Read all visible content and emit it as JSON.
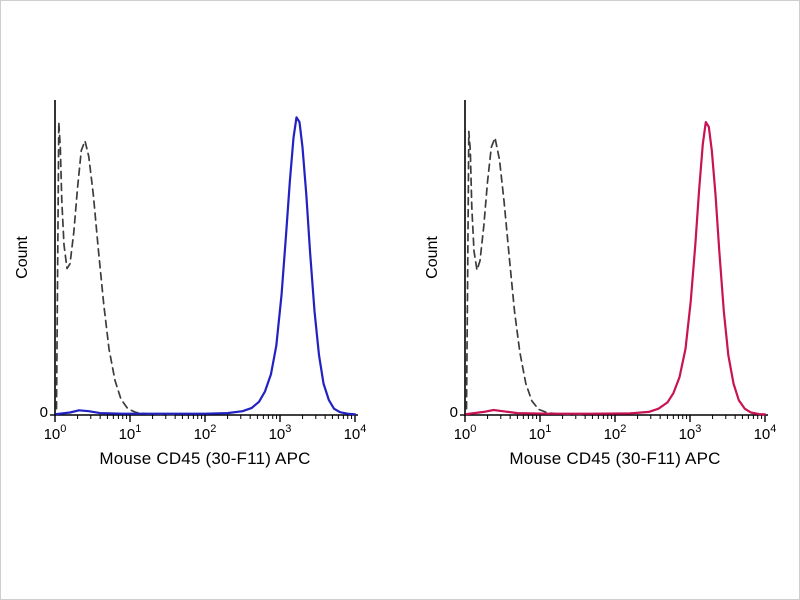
{
  "page": {
    "background": "#ffffff",
    "frame_color": "#cfcfcf"
  },
  "chart_data": [
    {
      "type": "line",
      "chart_kind": "flow-cytometry-histogram",
      "title": "",
      "xlabel": "Mouse CD45 (30-F11) APC",
      "ylabel": "Count",
      "x_scale": "log10",
      "xlim_exponents": [
        0,
        4
      ],
      "x_tick_base": "10",
      "x_tick_exponents": [
        "0",
        "1",
        "2",
        "3",
        "4"
      ],
      "y_tick_labels": [
        "0"
      ],
      "ylim": [
        0,
        1
      ],
      "grid": false,
      "legend": "none",
      "axis_color": "#000000",
      "series": [
        {
          "name": "control (dashed)",
          "line_style": "dashed",
          "color": "#3c3c3c",
          "points": [
            [
              0.02,
              0.02
            ],
            [
              0.035,
              0.45
            ],
            [
              0.05,
              0.93
            ],
            [
              0.07,
              0.85
            ],
            [
              0.09,
              0.68
            ],
            [
              0.12,
              0.54
            ],
            [
              0.16,
              0.465
            ],
            [
              0.2,
              0.48
            ],
            [
              0.25,
              0.58
            ],
            [
              0.3,
              0.72
            ],
            [
              0.35,
              0.84
            ],
            [
              0.4,
              0.87
            ],
            [
              0.45,
              0.82
            ],
            [
              0.51,
              0.7
            ],
            [
              0.58,
              0.52
            ],
            [
              0.65,
              0.35
            ],
            [
              0.72,
              0.21
            ],
            [
              0.8,
              0.11
            ],
            [
              0.88,
              0.05
            ],
            [
              0.97,
              0.02
            ],
            [
              1.08,
              0.008
            ],
            [
              1.25,
              0.003
            ],
            [
              1.6,
              0.001
            ]
          ]
        },
        {
          "name": "stained (solid)",
          "line_style": "solid",
          "color": "#2222c2",
          "points": [
            [
              0.02,
              0.003
            ],
            [
              0.2,
              0.008
            ],
            [
              0.32,
              0.015
            ],
            [
              0.45,
              0.012
            ],
            [
              0.6,
              0.006
            ],
            [
              0.9,
              0.004
            ],
            [
              1.4,
              0.004
            ],
            [
              2.0,
              0.004
            ],
            [
              2.3,
              0.006
            ],
            [
              2.5,
              0.012
            ],
            [
              2.62,
              0.022
            ],
            [
              2.72,
              0.042
            ],
            [
              2.8,
              0.075
            ],
            [
              2.88,
              0.13
            ],
            [
              2.95,
              0.22
            ],
            [
              3.02,
              0.38
            ],
            [
              3.08,
              0.57
            ],
            [
              3.13,
              0.74
            ],
            [
              3.18,
              0.88
            ],
            [
              3.22,
              0.945
            ],
            [
              3.26,
              0.93
            ],
            [
              3.3,
              0.85
            ],
            [
              3.35,
              0.7
            ],
            [
              3.4,
              0.52
            ],
            [
              3.46,
              0.33
            ],
            [
              3.52,
              0.19
            ],
            [
              3.58,
              0.1
            ],
            [
              3.65,
              0.048
            ],
            [
              3.72,
              0.02
            ],
            [
              3.8,
              0.009
            ],
            [
              3.9,
              0.004
            ],
            [
              4.0,
              0.002
            ]
          ]
        }
      ]
    },
    {
      "type": "line",
      "chart_kind": "flow-cytometry-histogram",
      "title": "",
      "xlabel": "Mouse CD45 (30-F11) APC",
      "ylabel": "Count",
      "x_scale": "log10",
      "xlim_exponents": [
        0,
        4
      ],
      "x_tick_base": "10",
      "x_tick_exponents": [
        "0",
        "1",
        "2",
        "3",
        "4"
      ],
      "y_tick_labels": [
        "0"
      ],
      "ylim": [
        0,
        1
      ],
      "grid": false,
      "legend": "none",
      "axis_color": "#000000",
      "series": [
        {
          "name": "control (dashed)",
          "line_style": "dashed",
          "color": "#3c3c3c",
          "points": [
            [
              0.02,
              0.02
            ],
            [
              0.035,
              0.42
            ],
            [
              0.05,
              0.9
            ],
            [
              0.07,
              0.84
            ],
            [
              0.09,
              0.66
            ],
            [
              0.12,
              0.52
            ],
            [
              0.16,
              0.46
            ],
            [
              0.2,
              0.49
            ],
            [
              0.25,
              0.6
            ],
            [
              0.3,
              0.74
            ],
            [
              0.35,
              0.85
            ],
            [
              0.4,
              0.88
            ],
            [
              0.46,
              0.81
            ],
            [
              0.52,
              0.68
            ],
            [
              0.59,
              0.5
            ],
            [
              0.66,
              0.33
            ],
            [
              0.73,
              0.2
            ],
            [
              0.81,
              0.1
            ],
            [
              0.89,
              0.045
            ],
            [
              0.98,
              0.018
            ],
            [
              1.1,
              0.007
            ],
            [
              1.3,
              0.002
            ],
            [
              1.6,
              0.001
            ]
          ]
        },
        {
          "name": "stained (solid)",
          "line_style": "solid",
          "color": "#c81355",
          "points": [
            [
              0.02,
              0.003
            ],
            [
              0.25,
              0.01
            ],
            [
              0.38,
              0.016
            ],
            [
              0.5,
              0.012
            ],
            [
              0.7,
              0.006
            ],
            [
              1.1,
              0.004
            ],
            [
              1.7,
              0.004
            ],
            [
              2.2,
              0.005
            ],
            [
              2.45,
              0.01
            ],
            [
              2.58,
              0.02
            ],
            [
              2.7,
              0.04
            ],
            [
              2.78,
              0.07
            ],
            [
              2.86,
              0.12
            ],
            [
              2.94,
              0.21
            ],
            [
              3.01,
              0.36
            ],
            [
              3.07,
              0.54
            ],
            [
              3.12,
              0.71
            ],
            [
              3.17,
              0.86
            ],
            [
              3.21,
              0.93
            ],
            [
              3.25,
              0.915
            ],
            [
              3.29,
              0.84
            ],
            [
              3.34,
              0.7
            ],
            [
              3.39,
              0.52
            ],
            [
              3.45,
              0.33
            ],
            [
              3.51,
              0.19
            ],
            [
              3.58,
              0.1
            ],
            [
              3.65,
              0.047
            ],
            [
              3.73,
              0.02
            ],
            [
              3.81,
              0.008
            ],
            [
              3.92,
              0.003
            ],
            [
              4.0,
              0.002
            ]
          ]
        }
      ]
    }
  ]
}
